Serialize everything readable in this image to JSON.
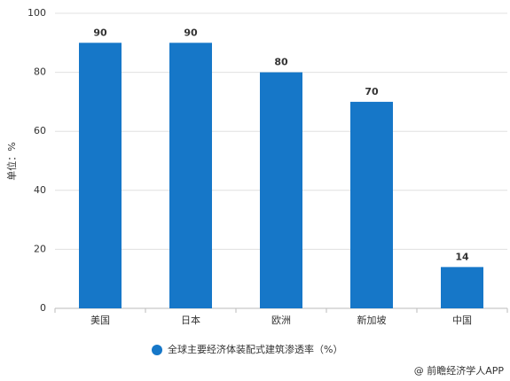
{
  "chart_data": {
    "type": "bar",
    "y_label": "单位：%",
    "categories": [
      "美国",
      "日本",
      "欧洲",
      "新加坡",
      "中国"
    ],
    "series": [
      {
        "name": "全球主要经济体装配式建筑渗透率（%）",
        "color": "#1677c8",
        "values": [
          90,
          90,
          80,
          70,
          14
        ]
      }
    ],
    "ylim": [
      0,
      100
    ],
    "yticks": [
      0,
      20,
      40,
      60,
      80,
      100
    ],
    "grid": true,
    "source": "@ 前瞻经济学人APP"
  }
}
